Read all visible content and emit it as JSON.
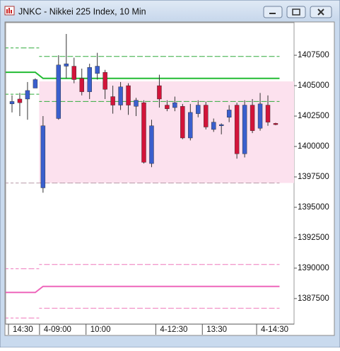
{
  "chart_data": {
    "type": "candlestick",
    "title": "JNKC - Nikkei 225 Index, 10 Min",
    "categories": [
      "14:30",
      null,
      null,
      null,
      "4-09:00",
      null,
      null,
      null,
      null,
      null,
      "10:00",
      null,
      null,
      null,
      null,
      null,
      null,
      null,
      null,
      "4-12:30",
      null,
      null,
      null,
      null,
      null,
      "13:30",
      null,
      null,
      null,
      null,
      null,
      null,
      "4-14:30",
      null,
      null
    ],
    "open": [
      1403500,
      1403900,
      1403900,
      1404800,
      1396600,
      null,
      1402300,
      1406600,
      1406600,
      1405600,
      1404500,
      1406000,
      1406100,
      1404100,
      1403400,
      1405000,
      1403300,
      1403600,
      1398600,
      1405000,
      1403400,
      1403200,
      1403300,
      1400700,
      1402700,
      1403400,
      1401400,
      1401700,
      1402400,
      1403400,
      1399400,
      1403400,
      1401500,
      1403400,
      1401900
    ],
    "high": [
      1404200,
      1404400,
      1405300,
      1405600,
      1402500,
      null,
      1407500,
      1409250,
      1407300,
      1406400,
      1406800,
      1407700,
      1406300,
      1405000,
      1405300,
      1405200,
      1404000,
      1403800,
      1402200,
      1405900,
      1403800,
      1404100,
      1403500,
      1403500,
      1403800,
      1403700,
      1402300,
      1401900,
      1403400,
      1403600,
      1403800,
      1403900,
      1404400,
      1404200,
      1401950
    ],
    "low": [
      1402800,
      1402500,
      1402200,
      1404800,
      1396200,
      null,
      1402200,
      1405600,
      1405200,
      1404200,
      1403900,
      1405500,
      1403900,
      1402700,
      1403000,
      1402600,
      1402500,
      1398600,
      1398300,
      1403200,
      1402900,
      1402900,
      1400600,
      1400500,
      1402400,
      1401400,
      1401200,
      1401000,
      1402000,
      1399000,
      1399100,
      1401100,
      1401300,
      1401700,
      1401750
    ],
    "close": [
      1403700,
      1403600,
      1404600,
      1405500,
      1401700,
      null,
      1406700,
      1406800,
      1405500,
      1404500,
      1406500,
      1406600,
      1404700,
      1403400,
      1404900,
      1403400,
      1403800,
      1398700,
      1401700,
      1403900,
      1403100,
      1403600,
      1400700,
      1402800,
      1403400,
      1401600,
      1402000,
      1401800,
      1403000,
      1399400,
      1403400,
      1401300,
      1403500,
      1402000,
      1401800
    ],
    "up_color": "#3a5fcd",
    "down_color": "#d2143a",
    "wick_color": "#333333",
    "zone": {
      "from": 1397000,
      "to": 1405350,
      "color": "#fce1ee"
    },
    "lines": [
      {
        "color": "#2eaa3a",
        "dashed": true,
        "values": [
          1408100,
          1408100,
          1408100,
          1408100,
          1407400,
          1407400,
          1407400,
          1407400,
          1407400,
          1407400,
          1407400,
          1407400,
          1407400,
          1407400,
          1407400,
          1407400,
          1407400,
          1407400,
          1407400,
          1407400,
          1407400,
          1407400,
          1407400,
          1407400,
          1407400,
          1407400,
          1407400,
          1407400,
          1407400,
          1407400,
          1407400,
          1407400,
          1407400,
          1407400,
          1407400
        ]
      },
      {
        "color": "#22bb33",
        "dashed": false,
        "values": [
          1406100,
          1406100,
          1406100,
          1406100,
          1405600,
          1405600,
          1405600,
          1405600,
          1405600,
          1405600,
          1405600,
          1405600,
          1405600,
          1405600,
          1405600,
          1405600,
          1405600,
          1405600,
          1405600,
          1405600,
          1405600,
          1405600,
          1405600,
          1405600,
          1405600,
          1405600,
          1405600,
          1405600,
          1405600,
          1405600,
          1405600,
          1405600,
          1405600,
          1405600,
          1405600
        ]
      },
      {
        "color": "#2eaa3a",
        "dashed": true,
        "values": [
          1404300,
          1404300,
          1404300,
          1404300,
          1403700,
          1403700,
          1403700,
          1403700,
          1403700,
          1403700,
          1403700,
          1403700,
          1403700,
          1403700,
          1403700,
          1403700,
          1403700,
          1403700,
          1403700,
          1403700,
          1403700,
          1403700,
          1403700,
          1403700,
          1403700,
          1403700,
          1403700,
          1403700,
          1403700,
          1403700,
          1403700,
          1403700,
          1403700,
          1403700,
          1403700
        ]
      },
      {
        "color": "#b89aa8",
        "dashed": true,
        "values": [
          1397000,
          1397000,
          1397000,
          1397000,
          1397000,
          1397000,
          1397000,
          1397000,
          1397000,
          1397000,
          1397000,
          1397000,
          1397000,
          1397000,
          1397000,
          1397000,
          1397000,
          1397000,
          1397000,
          1397000,
          1397000,
          1397000,
          1397000,
          1397000,
          1397000,
          1397000,
          1397000,
          1397000,
          1397000,
          1397000,
          1397000,
          1397000,
          1397000,
          1397000,
          1397000
        ]
      },
      {
        "color": "#ee77bb",
        "dashed": true,
        "values": [
          1389950,
          1389950,
          1389950,
          1389950,
          1390300,
          1390300,
          1390300,
          1390300,
          1390300,
          1390300,
          1390300,
          1390300,
          1390300,
          1390300,
          1390300,
          1390300,
          1390300,
          1390300,
          1390300,
          1390300,
          1390300,
          1390300,
          1390300,
          1390300,
          1390300,
          1390300,
          1390300,
          1390300,
          1390300,
          1390300,
          1390300,
          1390300,
          1390300,
          1390300,
          1390300
        ]
      },
      {
        "color": "#ee66bb",
        "dashed": false,
        "values": [
          1388000,
          1388000,
          1388000,
          1388000,
          1388500,
          1388500,
          1388500,
          1388500,
          1388500,
          1388500,
          1388500,
          1388500,
          1388500,
          1388500,
          1388500,
          1388500,
          1388500,
          1388500,
          1388500,
          1388500,
          1388500,
          1388500,
          1388500,
          1388500,
          1388500,
          1388500,
          1388500,
          1388500,
          1388500,
          1388500,
          1388500,
          1388500,
          1388500,
          1388500,
          1388500
        ]
      },
      {
        "color": "#ee77bb",
        "dashed": true,
        "values": [
          1385900,
          1385900,
          1385900,
          1385900,
          1386700,
          1386700,
          1386700,
          1386700,
          1386700,
          1386700,
          1386700,
          1386700,
          1386700,
          1386700,
          1386700,
          1386700,
          1386700,
          1386700,
          1386700,
          1386700,
          1386700,
          1386700,
          1386700,
          1386700,
          1386700,
          1386700,
          1386700,
          1386700,
          1386700,
          1386700,
          1386700,
          1386700,
          1386700,
          1386700,
          1386700
        ]
      }
    ],
    "ylim": [
      1385400,
      1410180
    ],
    "yticks": [
      1387500,
      1390000,
      1392500,
      1395000,
      1397500,
      1400000,
      1402500,
      1405000,
      1407500
    ]
  }
}
